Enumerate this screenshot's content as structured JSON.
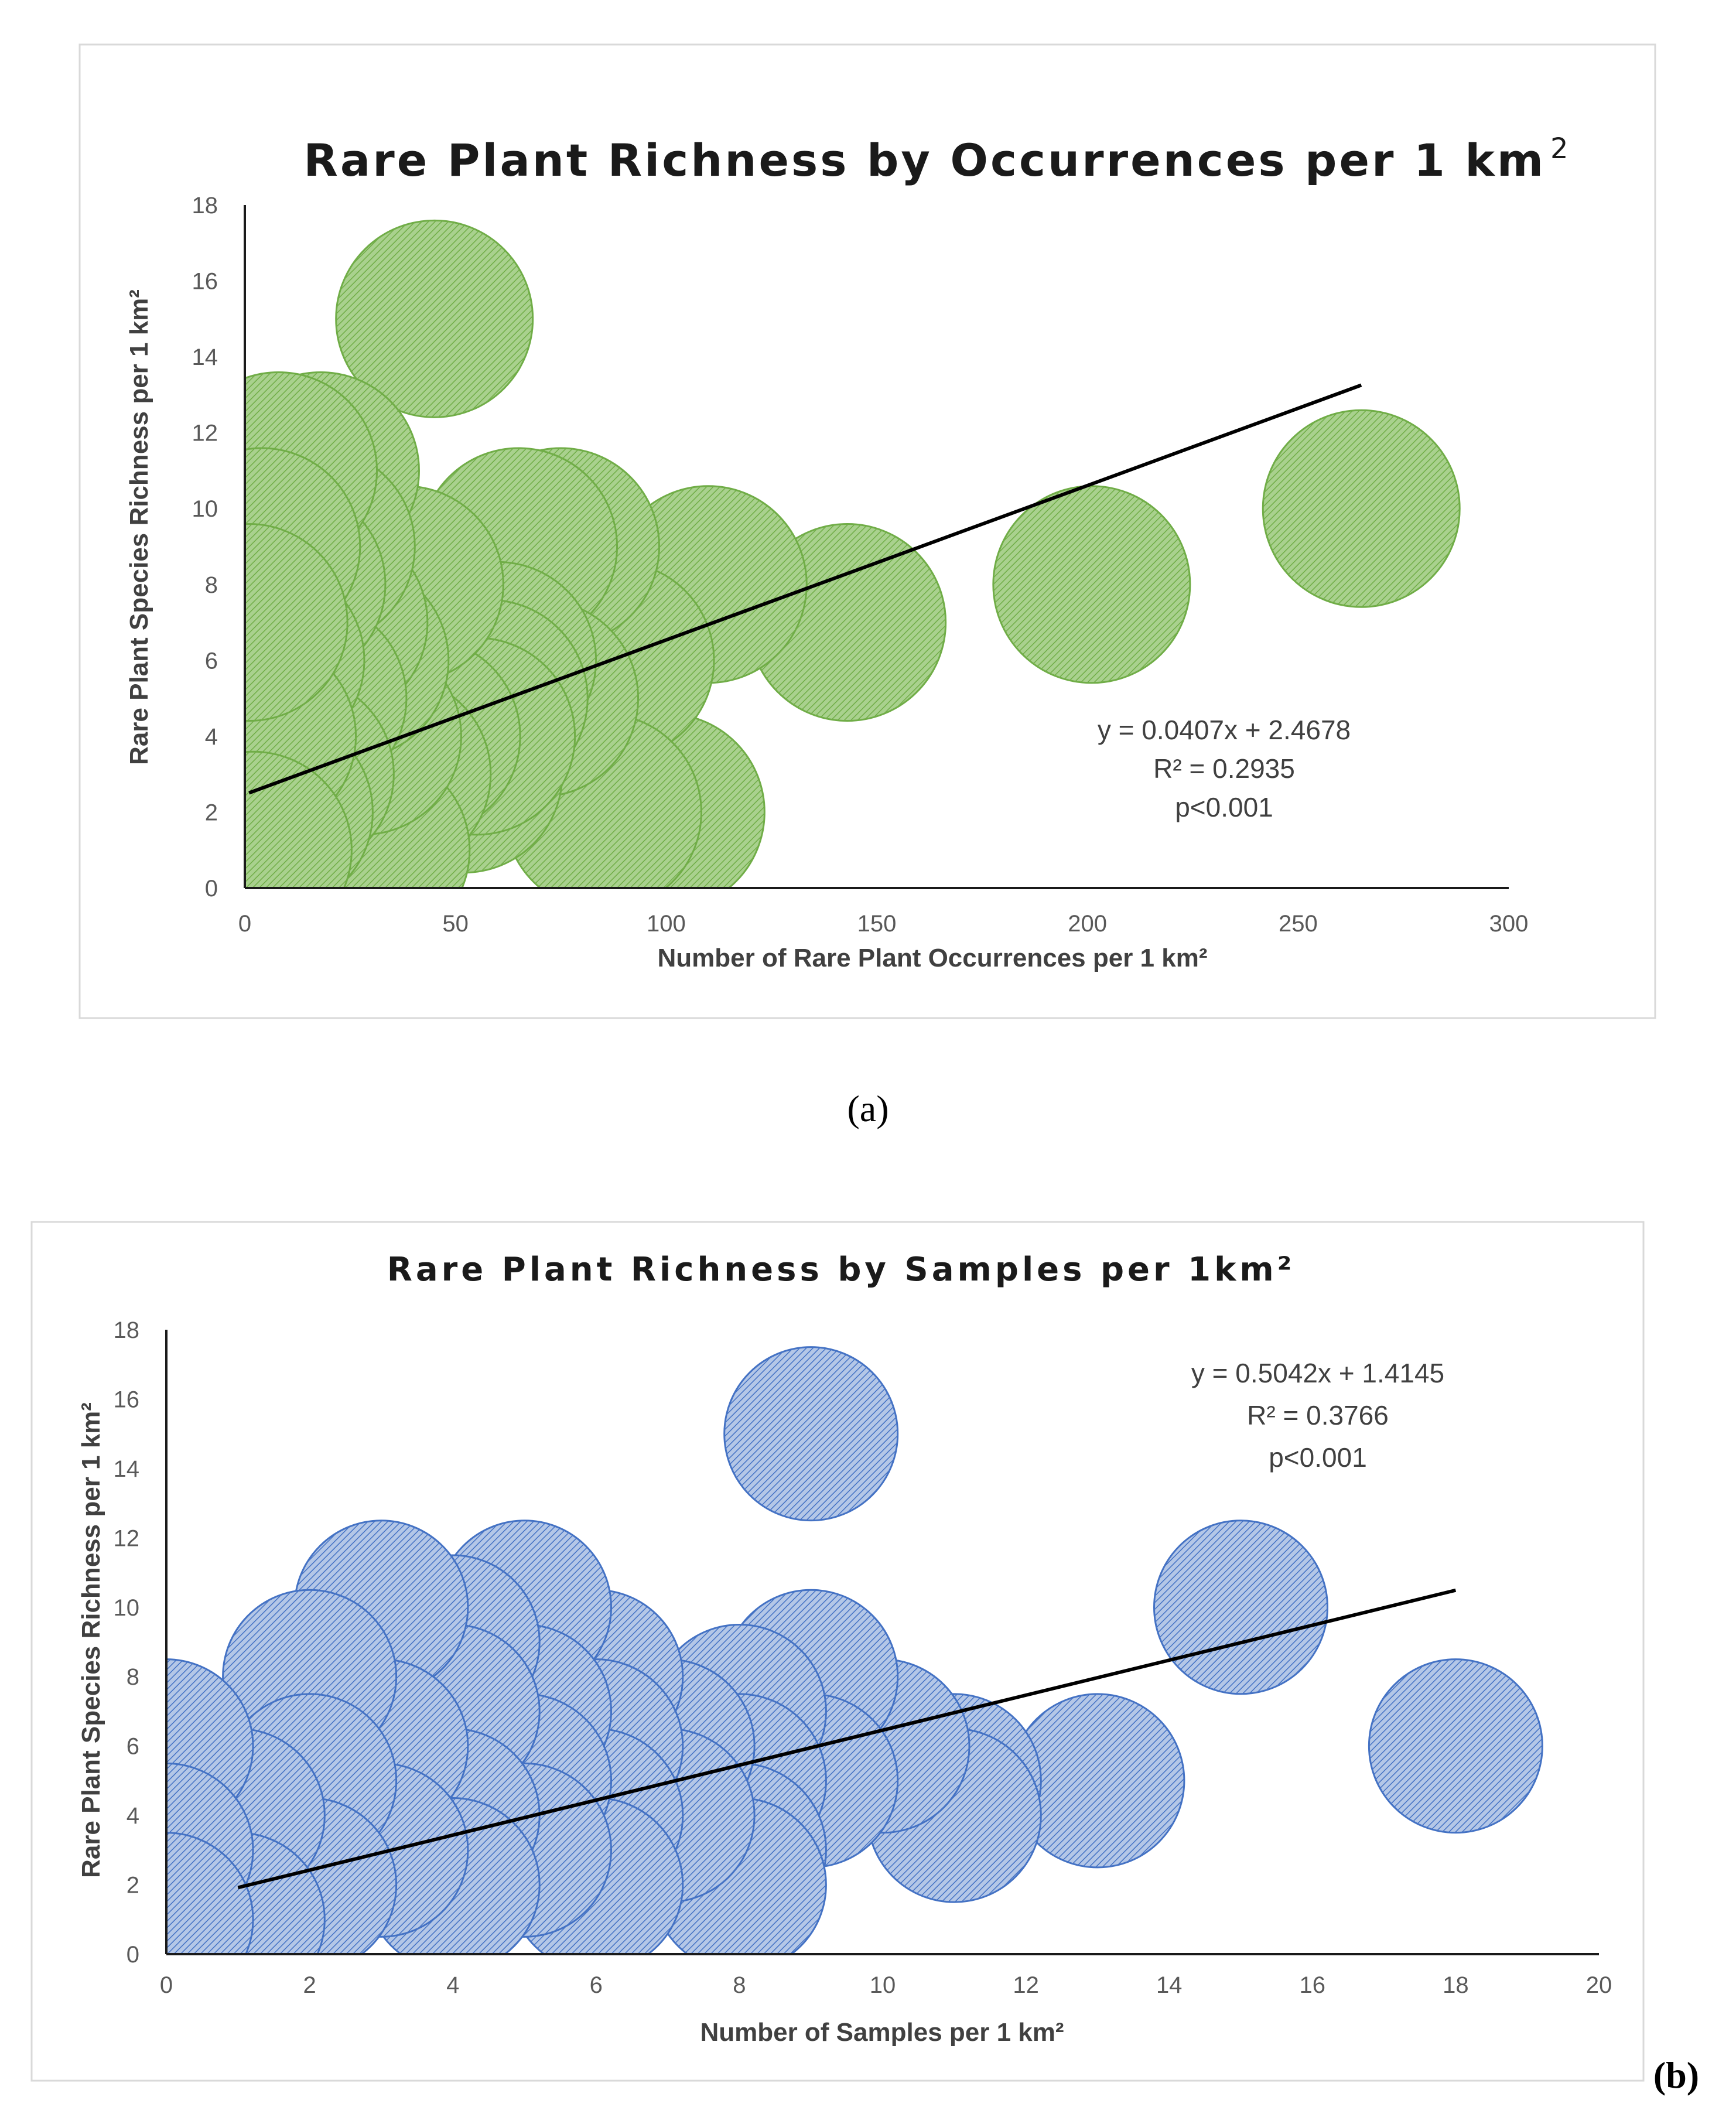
{
  "chart_data": [
    {
      "type": "scatter",
      "variant": "bubble",
      "panel_label": "a",
      "title": "Rare Plant Richness by Occurrences per 1 km",
      "title_superscript": "2",
      "xlabel": "Number of Rare Plant Occurrences per 1 km²",
      "ylabel": "Rare Plant Species Richness per 1 km²",
      "xlim": [
        0,
        300
      ],
      "ylim": [
        0,
        18
      ],
      "xticks": [
        "0",
        "50",
        "100",
        "150",
        "200",
        "250",
        "300"
      ],
      "yticks": [
        "0",
        "2",
        "4",
        "6",
        "8",
        "10",
        "12",
        "14",
        "16",
        "18"
      ],
      "color": "#8dc068",
      "stroke": "#70ad47",
      "points": [
        {
          "x": 45,
          "y": 15
        },
        {
          "x": 265,
          "y": 10
        },
        {
          "x": 201,
          "y": 8
        },
        {
          "x": 143,
          "y": 7
        },
        {
          "x": 110,
          "y": 8
        },
        {
          "x": 100,
          "y": 2
        },
        {
          "x": 88,
          "y": 6
        },
        {
          "x": 85,
          "y": 2
        },
        {
          "x": 75,
          "y": 9
        },
        {
          "x": 65,
          "y": 9
        },
        {
          "x": 70,
          "y": 5
        },
        {
          "x": 60,
          "y": 6
        },
        {
          "x": 58,
          "y": 5
        },
        {
          "x": 52,
          "y": 3
        },
        {
          "x": 55,
          "y": 4
        },
        {
          "x": 42,
          "y": 4
        },
        {
          "x": 38,
          "y": 8
        },
        {
          "x": 35,
          "y": 3
        },
        {
          "x": 30,
          "y": 1
        },
        {
          "x": 28,
          "y": 4
        },
        {
          "x": 25,
          "y": 6
        },
        {
          "x": 20,
          "y": 7
        },
        {
          "x": 18,
          "y": 11
        },
        {
          "x": 17,
          "y": 9
        },
        {
          "x": 15,
          "y": 5
        },
        {
          "x": 12,
          "y": 3
        },
        {
          "x": 10,
          "y": 8
        },
        {
          "x": 8,
          "y": 11
        },
        {
          "x": 7,
          "y": 2
        },
        {
          "x": 5,
          "y": 6
        },
        {
          "x": 3,
          "y": 4
        },
        {
          "x": 2,
          "y": 1
        },
        {
          "x": 4,
          "y": 9
        },
        {
          "x": 1,
          "y": 7
        }
      ],
      "trendline": {
        "slope": 0.0407,
        "intercept": 2.4678,
        "x_range": [
          1,
          265
        ]
      },
      "equation": "y = 0.0407x + 2.4678",
      "r_squared": "R² = 0.2935",
      "p_value": "p<0.001"
    },
    {
      "type": "scatter",
      "variant": "bubble",
      "panel_label": "b",
      "title": "Rare Plant Richness by Samples per 1km²",
      "xlabel": "Number of Samples per 1 km²",
      "ylabel": "Rare Plant Species Richness per 1 km²",
      "xlim": [
        0,
        20
      ],
      "ylim": [
        0,
        18
      ],
      "xticks": [
        "0",
        "2",
        "4",
        "6",
        "8",
        "10",
        "12",
        "14",
        "16",
        "18",
        "20"
      ],
      "yticks": [
        "0",
        "2",
        "4",
        "6",
        "8",
        "10",
        "12",
        "14",
        "16",
        "18"
      ],
      "color": "#8eaadb",
      "stroke": "#4472c4",
      "points": [
        {
          "x": 9,
          "y": 15
        },
        {
          "x": 15,
          "y": 10
        },
        {
          "x": 18,
          "y": 6
        },
        {
          "x": 13,
          "y": 5
        },
        {
          "x": 11,
          "y": 5
        },
        {
          "x": 11,
          "y": 4
        },
        {
          "x": 10,
          "y": 6
        },
        {
          "x": 9,
          "y": 8
        },
        {
          "x": 9,
          "y": 5
        },
        {
          "x": 8,
          "y": 7
        },
        {
          "x": 8,
          "y": 5
        },
        {
          "x": 8,
          "y": 3
        },
        {
          "x": 8,
          "y": 2
        },
        {
          "x": 7,
          "y": 6
        },
        {
          "x": 7,
          "y": 4
        },
        {
          "x": 6,
          "y": 8
        },
        {
          "x": 6,
          "y": 6
        },
        {
          "x": 6,
          "y": 4
        },
        {
          "x": 6,
          "y": 2
        },
        {
          "x": 5,
          "y": 10
        },
        {
          "x": 5,
          "y": 7
        },
        {
          "x": 5,
          "y": 5
        },
        {
          "x": 5,
          "y": 3
        },
        {
          "x": 4,
          "y": 9
        },
        {
          "x": 4,
          "y": 7
        },
        {
          "x": 4,
          "y": 4
        },
        {
          "x": 4,
          "y": 2
        },
        {
          "x": 3,
          "y": 10
        },
        {
          "x": 3,
          "y": 6
        },
        {
          "x": 3,
          "y": 3
        },
        {
          "x": 2,
          "y": 8
        },
        {
          "x": 2,
          "y": 5
        },
        {
          "x": 2,
          "y": 2
        },
        {
          "x": 1,
          "y": 4
        },
        {
          "x": 1,
          "y": 1
        },
        {
          "x": 0,
          "y": 6
        },
        {
          "x": 0,
          "y": 3
        },
        {
          "x": 0,
          "y": 1
        }
      ],
      "trendline": {
        "slope": 0.5042,
        "intercept": 1.4145,
        "x_range": [
          1,
          18
        ]
      },
      "equation": "y = 0.5042x + 1.4145",
      "r_squared": "R² = 0.3766",
      "p_value": "p<0.001"
    }
  ],
  "captions": {
    "a": "(a)",
    "b": "(b)"
  }
}
